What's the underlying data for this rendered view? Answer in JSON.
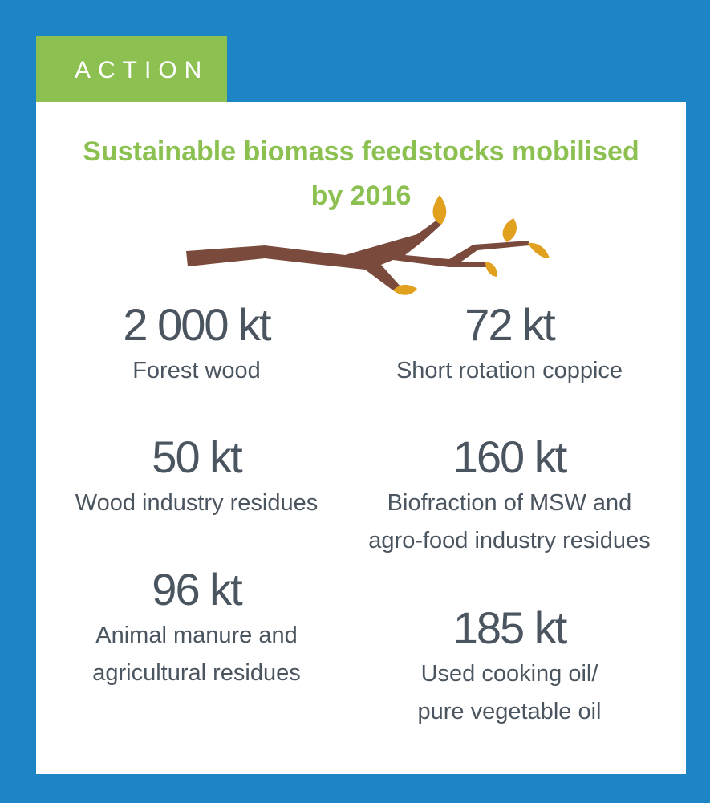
{
  "tag": "ACTION",
  "title": [
    "Sustainable biomass feedstocks mobilised",
    "by 2016"
  ],
  "items": [
    {
      "value": "2 000 kt",
      "label": [
        "Forest wood"
      ]
    },
    {
      "value": "72 kt",
      "label": [
        "Short rotation coppice"
      ]
    },
    {
      "value": "50 kt",
      "label": [
        "Wood industry residues"
      ]
    },
    {
      "value": "160 kt",
      "label": [
        "Biofraction of MSW and",
        "agro-food industry residues"
      ]
    },
    {
      "value": "96 kt",
      "label": [
        "Animal manure and",
        "agricultural residues"
      ]
    },
    {
      "value": "185 kt",
      "label": [
        "Used cooking oil/",
        "pure vegetable oil"
      ]
    }
  ]
}
